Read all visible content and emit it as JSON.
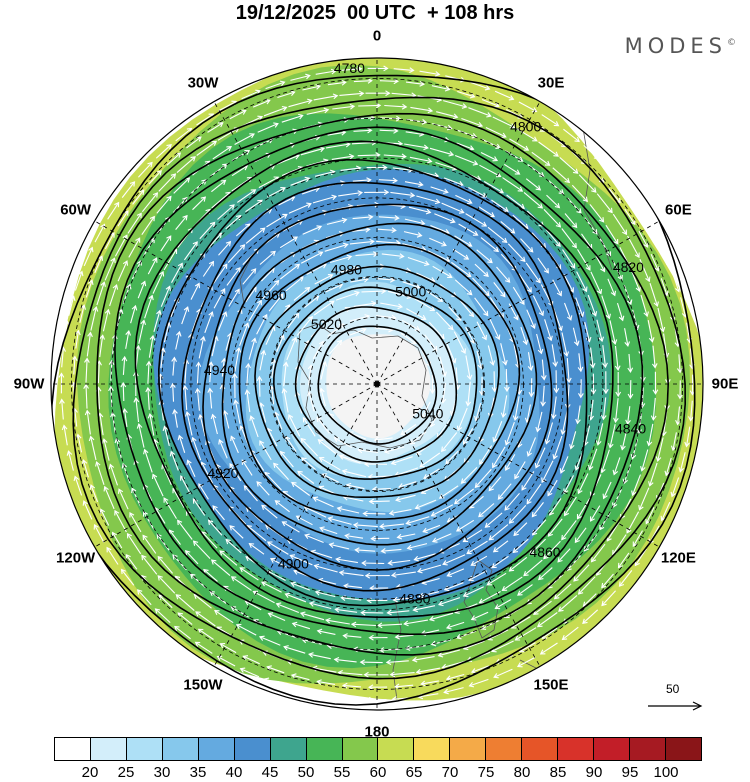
{
  "title": "19/12/2025  00 UTC  + 108 hrs",
  "brand": "MODES",
  "brand_mark": "©",
  "longitude_labels": [
    "0",
    "30E",
    "60E",
    "90E",
    "120E",
    "150E",
    "180",
    "150W",
    "120W",
    "90W",
    "60W",
    "30W"
  ],
  "contour_labels": [
    "4780",
    "4800",
    "4820",
    "4840",
    "4860",
    "4880",
    "4900",
    "4920",
    "4940",
    "4960",
    "4980",
    "5000",
    "5020",
    "5040"
  ],
  "colorbar": {
    "ticks": [
      "20",
      "25",
      "30",
      "35",
      "40",
      "45",
      "50",
      "55",
      "60",
      "65",
      "70",
      "75",
      "80",
      "85",
      "90",
      "95",
      "100"
    ],
    "colors": [
      "#ffffff",
      "#d3eefa",
      "#aee0f6",
      "#86c8ec",
      "#64aae0",
      "#4a8fcf",
      "#3ea58e",
      "#47b556",
      "#84c84c",
      "#c7dc52",
      "#f8da5c",
      "#f4aa48",
      "#ee7e32",
      "#e65528",
      "#d8322a",
      "#c21e28",
      "#a61a22",
      "#8a1518"
    ]
  },
  "reference_vector": "50",
  "colors": {
    "ice": "#f4f4f4",
    "wind_arrow": "#ffffff",
    "contour": "#000000"
  }
}
